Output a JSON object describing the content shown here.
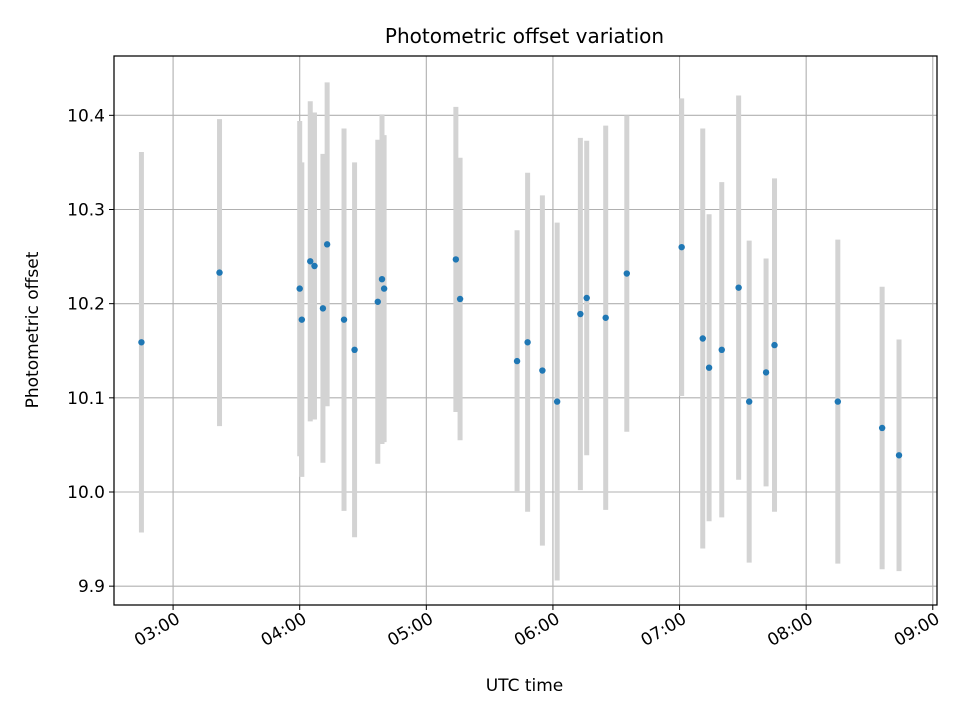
{
  "chart_data": {
    "type": "scatter",
    "title": "Photometric offset variation",
    "xlabel": "UTC time",
    "ylabel": "Photometric offset",
    "x_unit": "UTC time of day (HH:MM)",
    "xlim": [
      "02:32",
      "09:02"
    ],
    "ylim": [
      9.88,
      10.463
    ],
    "grid": true,
    "x_ticks": [
      "03:00",
      "04:00",
      "05:00",
      "06:00",
      "07:00",
      "08:00",
      "09:00"
    ],
    "y_ticks": [
      9.9,
      10.0,
      10.1,
      10.2,
      10.3,
      10.4
    ],
    "y_tick_labels": [
      "9.9",
      "10.0",
      "10.1",
      "10.2",
      "10.3",
      "10.4"
    ],
    "colors": {
      "point": "#1f77b4",
      "errorbar": "#d3d3d3",
      "grid": "#b0b0b0",
      "axes": "#000000"
    },
    "points": [
      {
        "x": "02:45",
        "y": 10.159,
        "err": 0.202
      },
      {
        "x": "03:22",
        "y": 10.233,
        "err": 0.163
      },
      {
        "x": "04:00",
        "y": 10.216,
        "err": 0.178
      },
      {
        "x": "04:01",
        "y": 10.183,
        "err": 0.167
      },
      {
        "x": "04:05",
        "y": 10.245,
        "err": 0.17
      },
      {
        "x": "04:07",
        "y": 10.24,
        "err": 0.163
      },
      {
        "x": "04:11",
        "y": 10.195,
        "err": 0.164
      },
      {
        "x": "04:13",
        "y": 10.263,
        "err": 0.172
      },
      {
        "x": "04:21",
        "y": 10.183,
        "err": 0.203
      },
      {
        "x": "04:26",
        "y": 10.151,
        "err": 0.199
      },
      {
        "x": "04:37",
        "y": 10.202,
        "err": 0.172
      },
      {
        "x": "04:39",
        "y": 10.226,
        "err": 0.175
      },
      {
        "x": "04:40",
        "y": 10.216,
        "err": 0.163
      },
      {
        "x": "05:14",
        "y": 10.247,
        "err": 0.162
      },
      {
        "x": "05:16",
        "y": 10.205,
        "err": 0.15
      },
      {
        "x": "05:43",
        "y": 10.139,
        "err": 0.139
      },
      {
        "x": "05:48",
        "y": 10.159,
        "err": 0.18
      },
      {
        "x": "05:55",
        "y": 10.129,
        "err": 0.186
      },
      {
        "x": "06:02",
        "y": 10.096,
        "err": 0.19
      },
      {
        "x": "06:13",
        "y": 10.189,
        "err": 0.187
      },
      {
        "x": "06:16",
        "y": 10.206,
        "err": 0.167
      },
      {
        "x": "06:25",
        "y": 10.185,
        "err": 0.204
      },
      {
        "x": "06:35",
        "y": 10.232,
        "err": 0.168
      },
      {
        "x": "07:01",
        "y": 10.26,
        "err": 0.158
      },
      {
        "x": "07:11",
        "y": 10.163,
        "err": 0.223
      },
      {
        "x": "07:14",
        "y": 10.132,
        "err": 0.163
      },
      {
        "x": "07:20",
        "y": 10.151,
        "err": 0.178
      },
      {
        "x": "07:28",
        "y": 10.217,
        "err": 0.204
      },
      {
        "x": "07:33",
        "y": 10.096,
        "err": 0.171
      },
      {
        "x": "07:41",
        "y": 10.127,
        "err": 0.121
      },
      {
        "x": "07:45",
        "y": 10.156,
        "err": 0.177
      },
      {
        "x": "08:15",
        "y": 10.096,
        "err": 0.172
      },
      {
        "x": "08:36",
        "y": 10.068,
        "err": 0.15
      },
      {
        "x": "08:44",
        "y": 10.039,
        "err": 0.123
      }
    ]
  }
}
